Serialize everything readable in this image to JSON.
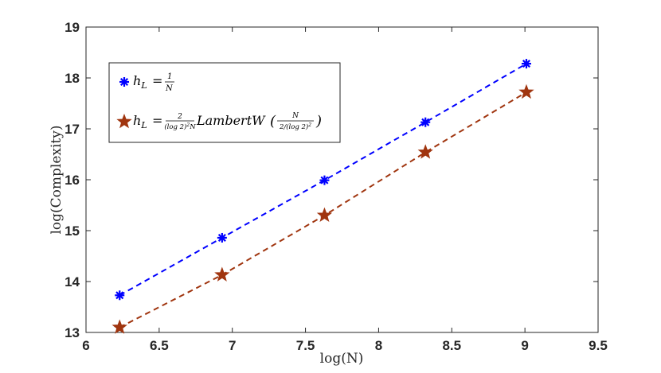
{
  "chart_data": {
    "type": "line",
    "title": "",
    "xlabel": "log(N)",
    "ylabel": "log(Complexity)",
    "xlim": [
      6,
      9.5
    ],
    "ylim": [
      13,
      19
    ],
    "xticks": [
      "6",
      "6.5",
      "7",
      "7.5",
      "8",
      "8.5",
      "9",
      "9.5"
    ],
    "yticks": [
      "13",
      "14",
      "15",
      "16",
      "17",
      "18",
      "19"
    ],
    "grid": false,
    "legend_position": "top-left",
    "x": [
      6.23,
      6.93,
      7.63,
      8.32,
      9.01
    ],
    "series": [
      {
        "name": "h_L = 1/N",
        "legend_label": "hL = 1/N",
        "color": "#0000ff",
        "marker": "asterisk",
        "line_style": "dashed",
        "values": [
          13.73,
          14.86,
          15.99,
          17.13,
          18.28
        ]
      },
      {
        "name": "h_L = 2/((log 2)^2 N) LambertW(N/(2/(log 2)^2))",
        "legend_label": "hL = 2/((log 2)²N) LambertW(N/(2/(log 2)²))",
        "color": "#a0350f",
        "marker": "star",
        "line_style": "dashed",
        "values": [
          13.1,
          14.13,
          15.3,
          16.54,
          17.72
        ]
      }
    ]
  }
}
